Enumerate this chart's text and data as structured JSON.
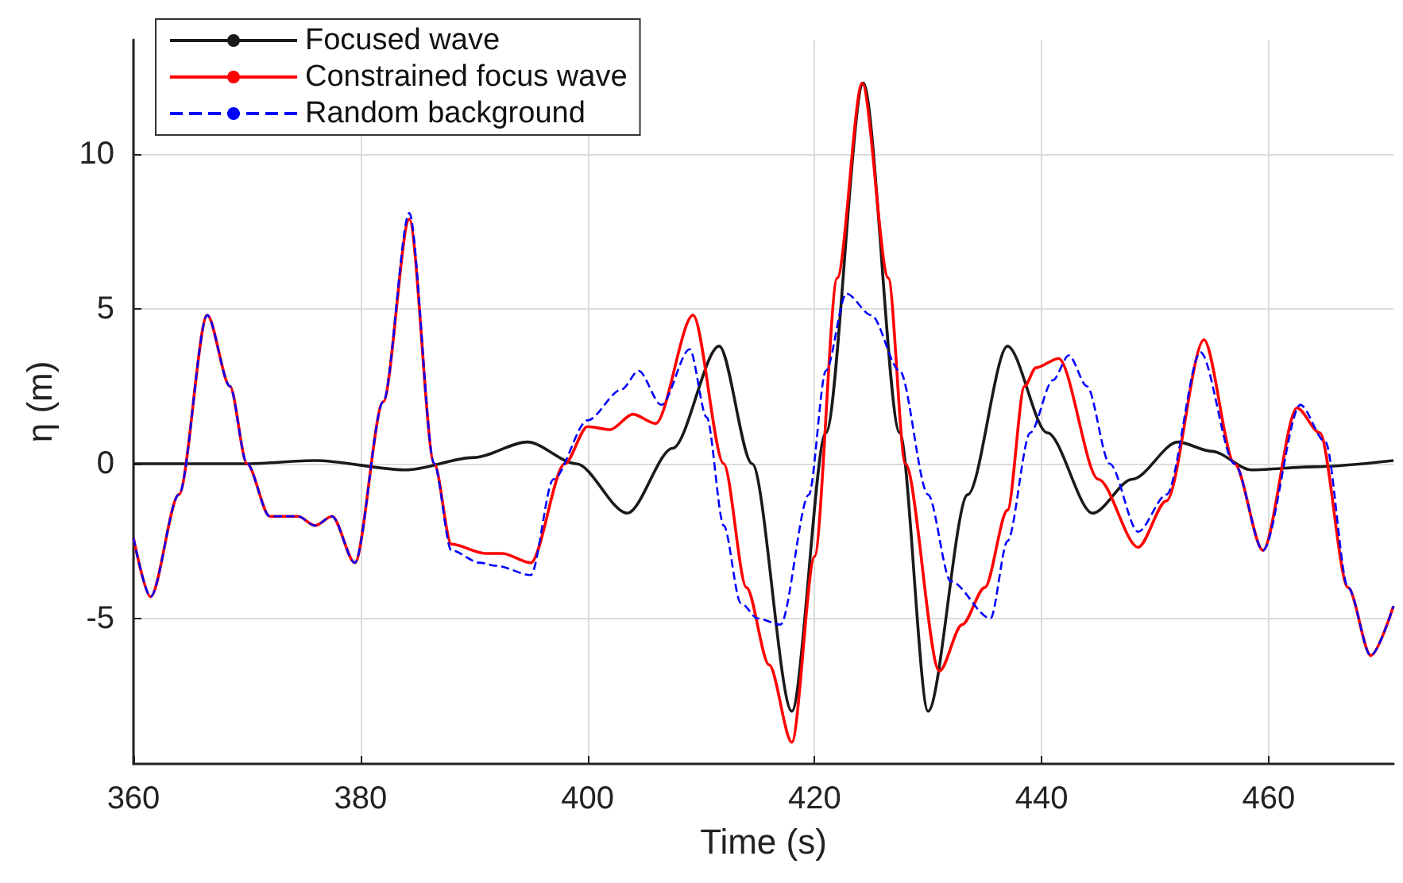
{
  "chart_data": {
    "type": "line",
    "xlabel": "Time (s)",
    "ylabel": "η (m)",
    "xlim": [
      360,
      471
    ],
    "ylim": [
      -9.7,
      13.7
    ],
    "xticks": [
      360,
      380,
      400,
      420,
      440,
      460
    ],
    "yticks": [
      -5,
      0,
      5,
      10
    ],
    "grid": true,
    "legend": "top left",
    "marker": "none",
    "series": [
      {
        "name": "Focused wave",
        "color": "#1a1a1a",
        "line_style": "solid",
        "x": [
          360,
          370,
          376,
          384,
          390,
          394.7,
          399,
          403.5,
          407.5,
          411.6,
          414.5,
          418,
          421,
          424.3,
          427.5,
          430,
          433.5,
          437,
          440.5,
          444.5,
          448,
          452,
          455,
          458.5,
          464,
          471
        ],
        "values": [
          0,
          0,
          0.1,
          -0.2,
          0.2,
          0.7,
          0,
          -1.6,
          0.5,
          3.8,
          0,
          -8,
          1,
          12.3,
          1,
          -8,
          -1,
          3.8,
          1,
          -1.6,
          -0.5,
          0.7,
          0.4,
          -0.2,
          -0.1,
          0.1
        ]
      },
      {
        "name": "Constrained focus wave",
        "color": "#ff0000",
        "line_style": "solid",
        "x": [
          360,
          361.5,
          364,
          366.5,
          368.5,
          370,
          372,
          374.5,
          376,
          377.5,
          379.5,
          382,
          384.3,
          386.5,
          388,
          391,
          392.5,
          395,
          398,
          400,
          402,
          404,
          406,
          409.3,
          412,
          414,
          416,
          418,
          420,
          422,
          424.2,
          426.5,
          428,
          431,
          433,
          435,
          437,
          438.5,
          439.5,
          441.5,
          445,
          448.5,
          451,
          454.3,
          457,
          459.5,
          462.5,
          464.5,
          467,
          469,
          471
        ],
        "values": [
          -2.4,
          -4.3,
          -1,
          4.8,
          2.5,
          0,
          -1.7,
          -1.7,
          -2,
          -1.7,
          -3.2,
          2,
          7.9,
          0,
          -2.6,
          -2.9,
          -2.9,
          -3.2,
          0,
          1.2,
          1.1,
          1.6,
          1.3,
          4.8,
          0,
          -4,
          -6.5,
          -9,
          -3,
          6,
          12.3,
          6,
          0,
          -6.7,
          -5.2,
          -4,
          -1.5,
          2.5,
          3.1,
          3.4,
          -0.5,
          -2.7,
          -1.2,
          4,
          0,
          -2.8,
          1.8,
          1,
          -4,
          -6.2,
          -4.6
        ]
      },
      {
        "name": "Random background",
        "color": "#0000ff",
        "line_style": "dashed",
        "x": [
          360,
          361.5,
          364,
          366.5,
          368.5,
          370,
          372,
          374.5,
          376,
          377.5,
          379.5,
          382,
          384.3,
          386.5,
          388,
          390.5,
          392,
          395,
          397,
          400,
          403,
          404.5,
          406.5,
          409,
          410.5,
          412,
          413.5,
          415,
          417,
          419.5,
          421,
          422.8,
          425,
          427.5,
          430,
          432,
          435.5,
          437,
          439,
          441,
          442.4,
          444,
          446,
          448.5,
          451,
          454,
          457,
          459.5,
          462.8,
          465,
          467,
          469,
          471
        ],
        "values": [
          -2.4,
          -4.3,
          -1,
          4.8,
          2.5,
          0,
          -1.7,
          -1.7,
          -2,
          -1.7,
          -3.2,
          2,
          8.1,
          0,
          -2.8,
          -3.2,
          -3.3,
          -3.6,
          -0.5,
          1.4,
          2.4,
          3,
          1.9,
          3.7,
          1.5,
          -2,
          -4.5,
          -5,
          -5.2,
          -1,
          3,
          5.5,
          4.8,
          3,
          -1,
          -3.8,
          -5,
          -2.5,
          1,
          2.7,
          3.5,
          2.5,
          0,
          -2.2,
          -1,
          3.6,
          0,
          -2.8,
          1.9,
          0.7,
          -4,
          -6.2,
          -4.6
        ]
      }
    ]
  }
}
